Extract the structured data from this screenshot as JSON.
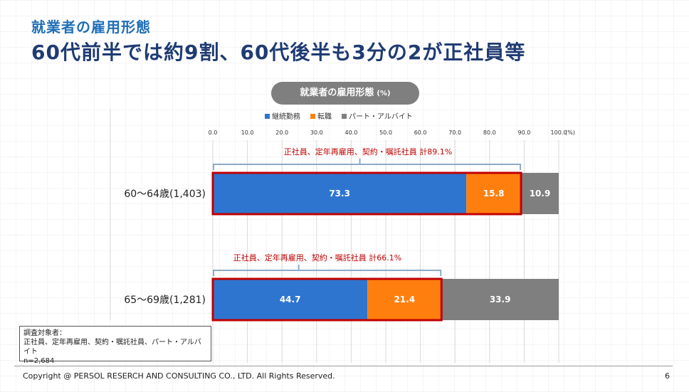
{
  "slide": {
    "title_small": "就業者の雇用形態",
    "title_large": "60代前半では約9割、60代後半も3分の2が正社員等",
    "chart_pill": "就業者の雇用形態",
    "chart_pill_unit": "(%)",
    "note_lines": [
      "調査対象者：",
      "正社員、定年再雇用、契約・嘱託社員、パート・アルバイト",
      "n=2,684"
    ],
    "copyright": "Copyright @ PERSOL RESERCH AND CONSULTING CO., LTD. All Rights Reserved.",
    "page_number": "6"
  },
  "colors": {
    "title_small": "#1f6fb8",
    "title_large": "#1f3b73",
    "continuing": "#2e75cf",
    "job_change": "#ff7f0e",
    "part_time": "#7f7f7f",
    "highlight": "#c00000",
    "bracket": "#8ea9c9"
  },
  "chart_data": {
    "type": "bar",
    "orientation": "horizontal",
    "stacked": true,
    "xlim": [
      0,
      100
    ],
    "xticks": [
      "0.0",
      "10.0",
      "20.0",
      "30.0",
      "40.0",
      "50.0",
      "60.0",
      "70.0",
      "80.0",
      "90.0",
      "100.0"
    ],
    "xtick_unit": "(%)",
    "categories": [
      "60～64歳(1,403)",
      "65～69歳(1,281)"
    ],
    "series": [
      {
        "name": "継続勤務",
        "values": [
          73.3,
          44.7
        ],
        "color": "#2e75cf"
      },
      {
        "name": "転職",
        "values": [
          15.8,
          21.4
        ],
        "color": "#ff7f0e"
      },
      {
        "name": "パート・アルバイト",
        "values": [
          10.9,
          33.9
        ],
        "color": "#7f7f7f"
      }
    ],
    "data_labels": [
      [
        "73.3",
        "15.8",
        "10.9"
      ],
      [
        "44.7",
        "21.4",
        "33.9"
      ]
    ],
    "legend": "top",
    "grid": true,
    "annotations": [
      {
        "text": "正社員、定年再雇用、契約・嘱託社員  計89.1%",
        "bar": 0,
        "total": 89.1
      },
      {
        "text": "正社員、定年再雇用、契約・嘱託社員  計66.1%",
        "bar": 1,
        "total": 66.1
      }
    ]
  }
}
